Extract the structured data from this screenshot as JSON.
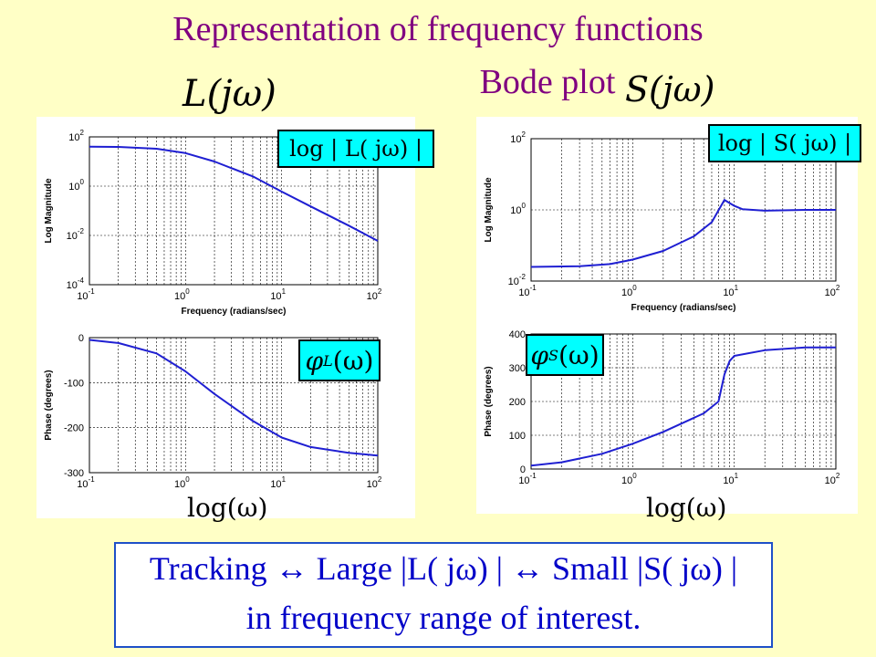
{
  "title": "Representation of frequency functions",
  "subtitle": "Bode plot",
  "labels": {
    "L": "L(jω)",
    "S": "S(jω)",
    "logL": "log | L( jω) |",
    "logS": "log | S( jω) |",
    "phiL": "φ",
    "phiL_sub": "L",
    "phiL_arg": "(ω)",
    "phiS": "φ",
    "phiS_sub": "S",
    "phiS_arg": "(ω)",
    "logw_left": "log(ω)",
    "logw_right": "log(ω)"
  },
  "tracking": {
    "line1": "Tracking ↔ Large |L( jω) | ↔ Small |S( jω) |",
    "line2": "in frequency range of interest."
  },
  "chart_data": [
    {
      "type": "line",
      "xlabel": "Frequency (radians/sec)",
      "ylabel": "Log Magnitude",
      "xscale": "log",
      "yscale": "log",
      "xlim": [
        0.1,
        100
      ],
      "ylim": [
        0.0001,
        100
      ],
      "x": [
        0.1,
        0.2,
        0.5,
        1,
        2,
        5,
        10,
        20,
        50,
        100
      ],
      "series": [
        {
          "values": [
            40,
            39,
            33,
            22,
            10,
            2.5,
            0.6,
            0.15,
            0.025,
            0.006
          ]
        }
      ],
      "grid": true
    },
    {
      "type": "line",
      "xlabel": "",
      "ylabel": "Phase (degrees)",
      "xscale": "log",
      "xlim": [
        0.1,
        100
      ],
      "ylim": [
        -300,
        0
      ],
      "yticks": [
        -300,
        -200,
        -100,
        0
      ],
      "x": [
        0.1,
        0.2,
        0.5,
        1,
        2,
        5,
        10,
        20,
        50,
        100
      ],
      "series": [
        {
          "values": [
            -5,
            -12,
            -35,
            -75,
            -125,
            -185,
            -222,
            -243,
            -256,
            -262
          ]
        }
      ],
      "grid": true
    },
    {
      "type": "line",
      "xlabel": "Frequency (radians/sec)",
      "ylabel": "Log Magnitude",
      "xscale": "log",
      "yscale": "log",
      "xlim": [
        0.1,
        100
      ],
      "ylim": [
        0.01,
        100
      ],
      "x": [
        0.1,
        0.3,
        0.6,
        1,
        2,
        4,
        6,
        8,
        10,
        12,
        20,
        50,
        100
      ],
      "series": [
        {
          "values": [
            0.025,
            0.026,
            0.03,
            0.04,
            0.07,
            0.18,
            0.45,
            1.9,
            1.3,
            1.05,
            0.95,
            1.0,
            1.0
          ]
        }
      ],
      "grid": true
    },
    {
      "type": "line",
      "xlabel": "",
      "ylabel": "Phase (degrees)",
      "xscale": "log",
      "xlim": [
        0.1,
        100
      ],
      "ylim": [
        0,
        400
      ],
      "yticks": [
        0,
        100,
        200,
        300,
        400
      ],
      "x": [
        0.1,
        0.2,
        0.5,
        1,
        2,
        5,
        7,
        8,
        9,
        10,
        20,
        50,
        100
      ],
      "series": [
        {
          "values": [
            10,
            20,
            45,
            75,
            110,
            165,
            200,
            280,
            320,
            335,
            352,
            360,
            360
          ]
        }
      ],
      "grid": true
    }
  ]
}
